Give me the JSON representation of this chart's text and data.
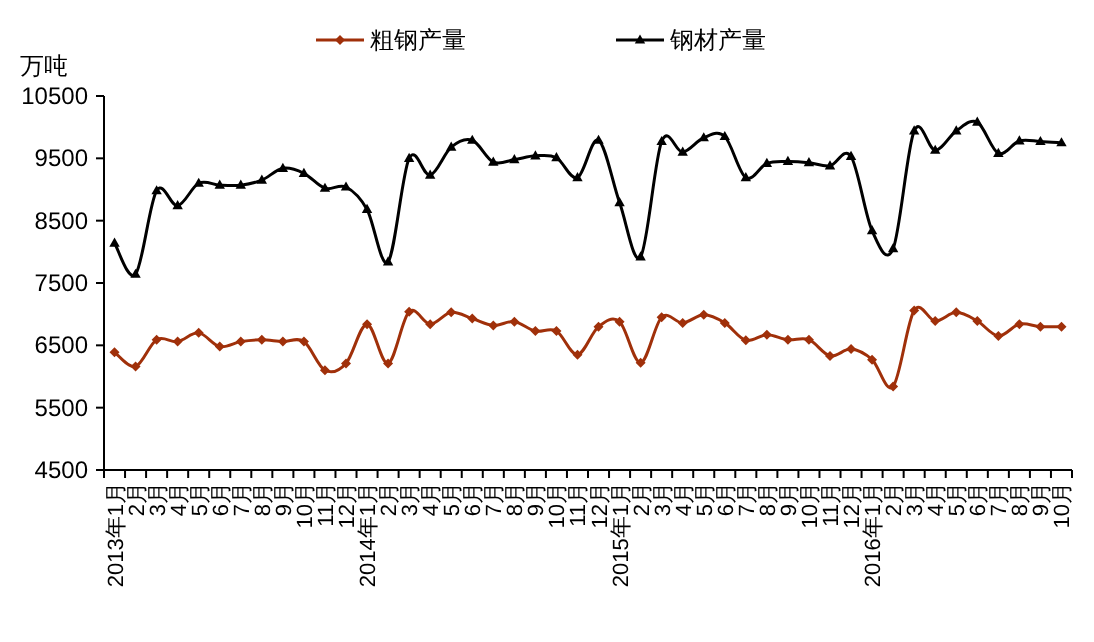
{
  "chart_data": {
    "type": "line",
    "ylabel": "万吨",
    "categories": [
      "2013年1月",
      "2月",
      "3月",
      "4月",
      "5月",
      "6月",
      "7月",
      "8月",
      "9月",
      "10月",
      "11月",
      "12月",
      "2014年1月",
      "2月",
      "3月",
      "4月",
      "5月",
      "6月",
      "7月",
      "8月",
      "9月",
      "10月",
      "11月",
      "12月",
      "2015年1月",
      "2月",
      "3月",
      "4月",
      "5月",
      "6月",
      "7月",
      "8月",
      "9月",
      "10月",
      "11月",
      "12月",
      "2016年1月",
      "2月",
      "3月",
      "4月",
      "5月",
      "6月",
      "7月",
      "8月",
      "9月",
      "10月"
    ],
    "series": [
      {
        "name": "粗钢产量",
        "color": "#a0300a",
        "marker": "diamond",
        "values": [
          6390,
          6160,
          6590,
          6560,
          6700,
          6480,
          6560,
          6590,
          6560,
          6560,
          6100,
          6210,
          6840,
          6210,
          7040,
          6840,
          7030,
          6930,
          6820,
          6880,
          6730,
          6730,
          6350,
          6800,
          6880,
          6220,
          6950,
          6860,
          6990,
          6860,
          6580,
          6670,
          6590,
          6590,
          6330,
          6440,
          6270,
          5840,
          7060,
          6890,
          7030,
          6890,
          6650,
          6840,
          6800,
          6800
        ]
      },
      {
        "name": "钢材产量",
        "color": "#000000",
        "marker": "triangle",
        "values": [
          8140,
          7640,
          8980,
          8740,
          9100,
          9070,
          9070,
          9150,
          9340,
          9260,
          9020,
          9040,
          8680,
          7840,
          9500,
          9230,
          9680,
          9790,
          9440,
          9480,
          9540,
          9510,
          9190,
          9790,
          8790,
          7920,
          9770,
          9600,
          9830,
          9850,
          9190,
          9420,
          9450,
          9430,
          9380,
          9530,
          8340,
          8050,
          9940,
          9630,
          9940,
          10080,
          9580,
          9780,
          9770,
          9750
        ]
      }
    ],
    "ylim": [
      4500,
      10500
    ],
    "yticks": [
      4500,
      5500,
      6500,
      7500,
      8500,
      9500,
      10500
    ],
    "grid": false,
    "legend": "top"
  }
}
